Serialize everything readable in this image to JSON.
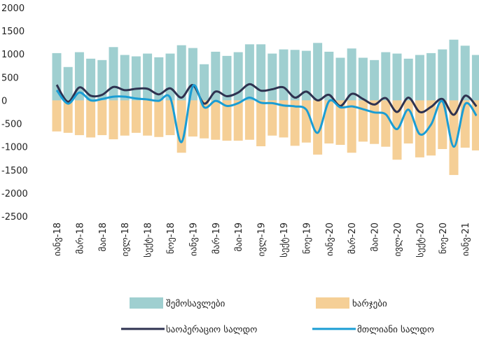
{
  "chart_data": {
    "type": "bar",
    "categories": [
      "იანვ-18",
      null,
      "მარ-18",
      null,
      "მაი-18",
      null,
      "ივლ-18",
      null,
      "სექტ-18",
      null,
      "ნოე-18",
      null,
      "იანვ-19",
      null,
      "მარ-19",
      null,
      "მაი-19",
      null,
      "ივლ-19",
      null,
      "სექტ-19",
      null,
      "ნოე-19",
      null,
      "იანვ-20",
      null,
      "მარ-20",
      null,
      "მაი-20",
      null,
      "ივლ-20",
      null,
      "სექტ-20",
      null,
      "ნოე-20",
      null,
      "იანვ-21",
      null
    ],
    "series": [
      {
        "name": "შემოსავლები",
        "type": "bar",
        "color": "#9fcfd0",
        "values": [
          1020,
          720,
          1040,
          900,
          870,
          1150,
          980,
          950,
          1010,
          930,
          1010,
          1190,
          1130,
          780,
          1050,
          960,
          1040,
          1210,
          1210,
          1010,
          1100,
          1090,
          1070,
          1240,
          1050,
          920,
          1120,
          920,
          870,
          1040,
          1010,
          900,
          980,
          1020,
          1100,
          1310,
          1180,
          980
        ]
      },
      {
        "name": "ხარჯები",
        "type": "bar",
        "color": "#f5cf96",
        "values": [
          -670,
          -700,
          -750,
          -800,
          -750,
          -840,
          -760,
          -700,
          -760,
          -790,
          -750,
          -1130,
          -780,
          -820,
          -850,
          -870,
          -870,
          -850,
          -990,
          -760,
          -800,
          -980,
          -910,
          -1170,
          -930,
          -960,
          -1130,
          -890,
          -940,
          -1000,
          -1280,
          -930,
          -1230,
          -1190,
          -1050,
          -1610,
          -1020,
          -1080
        ]
      },
      {
        "name": "საოპერაციო სალდო",
        "type": "line",
        "color": "#2e3250",
        "values": [
          335,
          -30,
          280,
          100,
          120,
          290,
          220,
          250,
          250,
          130,
          260,
          60,
          330,
          -70,
          190,
          90,
          170,
          350,
          210,
          240,
          280,
          60,
          190,
          0,
          120,
          -120,
          140,
          30,
          -90,
          50,
          -250,
          60,
          -250,
          -140,
          30,
          -310,
          100,
          -130
        ]
      },
      {
        "name": "მთლიანი სალდო",
        "type": "line",
        "color": "#1a9dd4",
        "values": [
          220,
          -70,
          170,
          0,
          30,
          80,
          80,
          40,
          20,
          -10,
          60,
          -900,
          310,
          -150,
          -10,
          -120,
          -60,
          60,
          -50,
          -60,
          -110,
          -130,
          -200,
          -700,
          -20,
          -150,
          -130,
          -190,
          -260,
          -300,
          -620,
          -200,
          -730,
          -520,
          -20,
          -1000,
          -80,
          -330
        ]
      }
    ],
    "ylim": [
      -2500,
      2000
    ],
    "yticks": [
      -2500,
      -2000,
      -1500,
      -1000,
      -500,
      0,
      500,
      1000,
      1500,
      2000
    ]
  }
}
